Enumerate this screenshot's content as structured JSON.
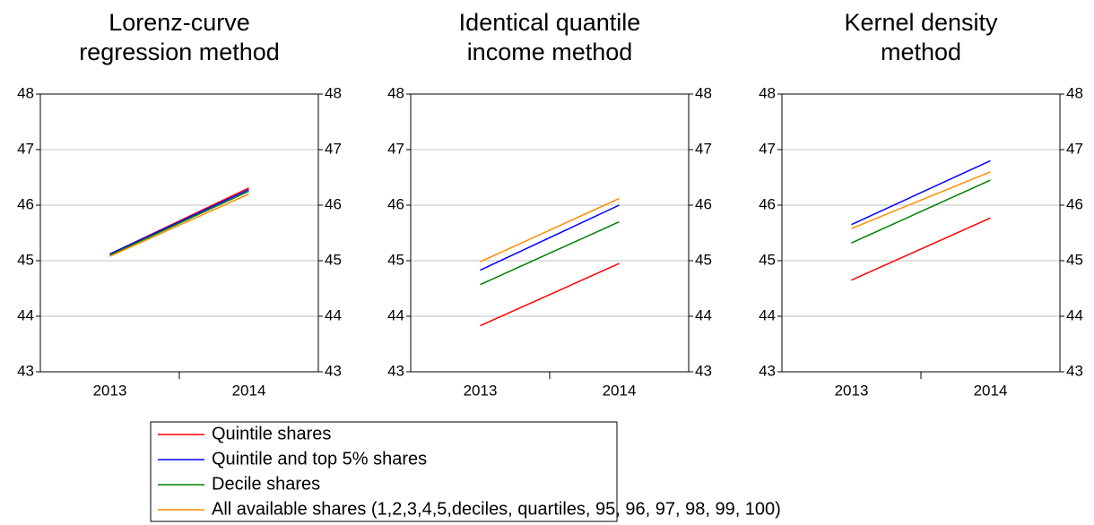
{
  "chart_data": [
    {
      "type": "line",
      "title": [
        "Lorenz-curve",
        "regression method"
      ],
      "categories": [
        "2013",
        "2014"
      ],
      "series": [
        {
          "name": "Quintile shares",
          "color": "#ff0000",
          "values": [
            45.12,
            46.31
          ]
        },
        {
          "name": "Quintile and top 5% shares",
          "color": "#0000ff",
          "values": [
            45.12,
            46.28
          ]
        },
        {
          "name": "Decile shares",
          "color": "#008000",
          "values": [
            45.1,
            46.25
          ]
        },
        {
          "name": "All available shares (1,2,3,4,5,deciles, quartiles, 95, 96, 97, 98, 99, 100)",
          "color": "#ff8c00",
          "values": [
            45.08,
            46.2
          ]
        }
      ],
      "ylim": [
        43,
        48
      ],
      "yticks": [
        43,
        44,
        45,
        46,
        47,
        48
      ],
      "grid": true
    },
    {
      "type": "line",
      "title": [
        "Identical quantile",
        "income method"
      ],
      "categories": [
        "2013",
        "2014"
      ],
      "series": [
        {
          "color": "#ff0000",
          "values": [
            43.83,
            44.95
          ]
        },
        {
          "color": "#0000ff",
          "values": [
            44.83,
            46.0
          ]
        },
        {
          "color": "#008000",
          "values": [
            44.57,
            45.7
          ]
        },
        {
          "color": "#ff8c00",
          "values": [
            44.98,
            46.12
          ]
        }
      ],
      "ylim": [
        43,
        48
      ],
      "yticks": [
        43,
        44,
        45,
        46,
        47,
        48
      ],
      "grid": true
    },
    {
      "type": "line",
      "title": [
        "Kernel density",
        "method"
      ],
      "categories": [
        "2013",
        "2014"
      ],
      "series": [
        {
          "color": "#ff0000",
          "values": [
            44.65,
            45.77
          ]
        },
        {
          "color": "#0000ff",
          "values": [
            45.65,
            46.8
          ]
        },
        {
          "color": "#008000",
          "values": [
            45.32,
            46.45
          ]
        },
        {
          "color": "#ff8c00",
          "values": [
            45.58,
            46.6
          ]
        }
      ],
      "ylim": [
        43,
        48
      ],
      "yticks": [
        43,
        44,
        45,
        46,
        47,
        48
      ],
      "grid": true
    }
  ]
}
